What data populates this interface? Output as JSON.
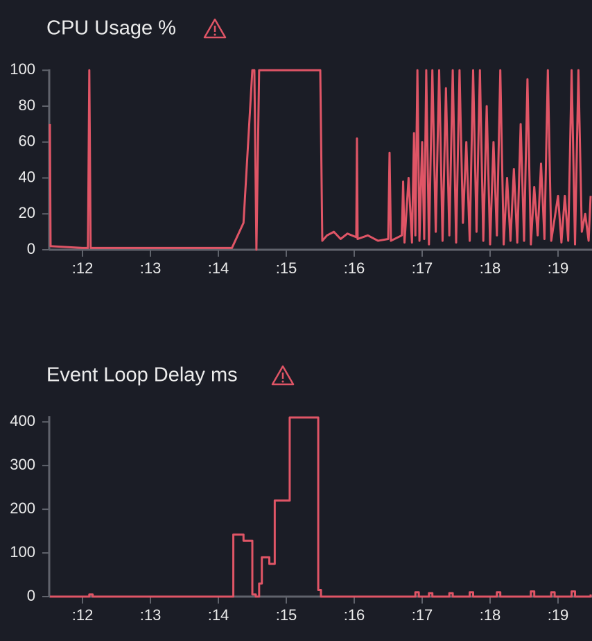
{
  "chart_data": [
    {
      "type": "line",
      "title": "CPU Usage %",
      "color": "#e05566",
      "xlim": [
        11.51,
        19.5
      ],
      "ylim": [
        0,
        100.5
      ],
      "xticks": [
        {
          "value": 12,
          "label": ":12"
        },
        {
          "value": 13,
          "label": ":13"
        },
        {
          "value": 14,
          "label": ":14"
        },
        {
          "value": 15,
          "label": ":15"
        },
        {
          "value": 16,
          "label": ":16"
        },
        {
          "value": 17,
          "label": ":17"
        },
        {
          "value": 18,
          "label": ":18"
        },
        {
          "value": 19,
          "label": ":19"
        }
      ],
      "yticks": [
        0,
        20,
        40,
        60,
        80,
        100
      ],
      "x": [
        11.52,
        11.53,
        12.0,
        12.08,
        12.1,
        12.12,
        13.0,
        14.2,
        14.37,
        14.5,
        14.53,
        14.56,
        14.6,
        15.5,
        15.53,
        15.6,
        15.7,
        15.8,
        15.9,
        16.03,
        16.04,
        16.05,
        16.2,
        16.35,
        16.5,
        16.52,
        16.54,
        16.7,
        16.72,
        16.74,
        16.8,
        16.85,
        16.88,
        16.9,
        16.93,
        16.96,
        17.0,
        17.03,
        17.06,
        17.1,
        17.15,
        17.2,
        17.25,
        17.3,
        17.35,
        17.4,
        17.45,
        17.5,
        17.55,
        17.6,
        17.65,
        17.7,
        17.75,
        17.8,
        17.85,
        17.9,
        17.95,
        18.0,
        18.05,
        18.1,
        18.15,
        18.2,
        18.25,
        18.3,
        18.35,
        18.4,
        18.45,
        18.5,
        18.55,
        18.6,
        18.65,
        18.7,
        18.75,
        18.8,
        18.85,
        18.9,
        19.0,
        19.05,
        19.1,
        19.15,
        19.2,
        19.25,
        19.3,
        19.35,
        19.4,
        19.45,
        19.48
      ],
      "values": [
        70,
        2,
        1,
        1,
        100,
        1,
        1,
        1,
        15,
        100,
        100,
        0,
        100,
        100,
        5,
        8,
        10,
        6,
        9,
        7,
        62,
        6,
        8,
        5,
        6,
        54,
        5,
        8,
        38,
        4,
        40,
        4,
        65,
        8,
        100,
        5,
        60,
        6,
        100,
        3,
        100,
        10,
        100,
        5,
        90,
        8,
        100,
        4,
        100,
        15,
        60,
        5,
        100,
        10,
        100,
        5,
        80,
        3,
        60,
        8,
        100,
        3,
        40,
        5,
        45,
        4,
        70,
        5,
        95,
        3,
        35,
        8,
        48,
        6,
        100,
        5,
        30,
        4,
        30,
        5,
        100,
        3,
        100,
        10,
        20,
        5,
        30
      ]
    },
    {
      "type": "line",
      "step": "after",
      "title": "Event Loop Delay ms",
      "color": "#e05566",
      "xlim": [
        11.51,
        19.5
      ],
      "ylim": [
        0,
        413
      ],
      "xticks": [
        {
          "value": 12,
          "label": ":12"
        },
        {
          "value": 13,
          "label": ":13"
        },
        {
          "value": 14,
          "label": ":14"
        },
        {
          "value": 15,
          "label": ":15"
        },
        {
          "value": 16,
          "label": ":16"
        },
        {
          "value": 17,
          "label": ":17"
        },
        {
          "value": 18,
          "label": ":18"
        },
        {
          "value": 19,
          "label": ":19"
        }
      ],
      "yticks": [
        0,
        100,
        200,
        300,
        400
      ],
      "x": [
        11.52,
        12.1,
        12.15,
        14.22,
        14.37,
        14.5,
        14.55,
        14.6,
        14.64,
        14.75,
        14.83,
        15.05,
        15.47,
        15.51,
        16.9,
        16.95,
        17.1,
        17.15,
        17.4,
        17.45,
        17.7,
        17.75,
        18.1,
        18.15,
        18.6,
        18.65,
        18.9,
        18.95,
        19.2,
        19.25,
        19.48
      ],
      "values": [
        0,
        5,
        0,
        142,
        128,
        5,
        0,
        30,
        90,
        75,
        220,
        410,
        15,
        0,
        10,
        0,
        8,
        0,
        8,
        0,
        10,
        0,
        10,
        0,
        12,
        0,
        10,
        0,
        12,
        0,
        5
      ]
    }
  ]
}
